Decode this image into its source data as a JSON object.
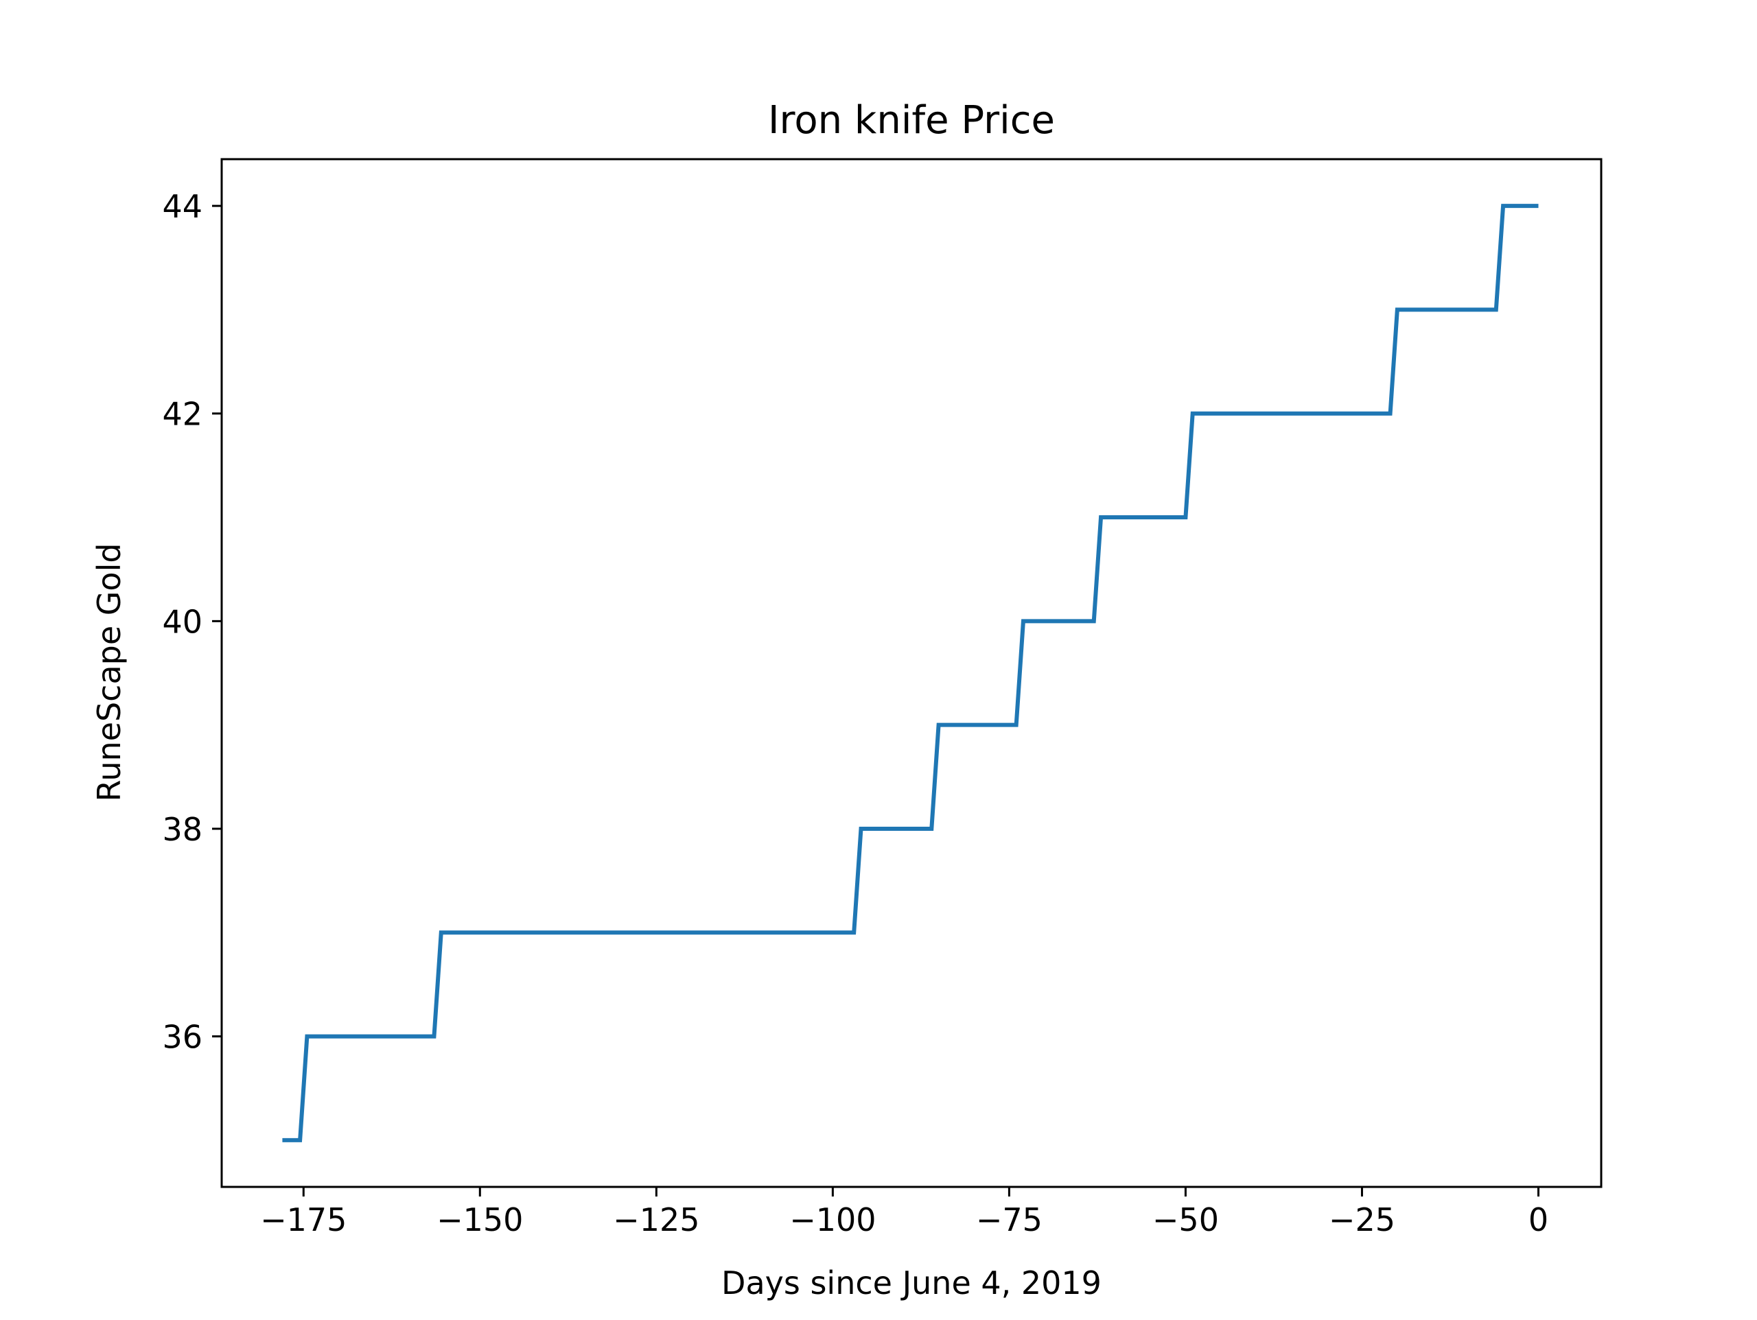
{
  "chart_data": {
    "type": "line",
    "title": "Iron knife Price",
    "xlabel": "Days since June 4, 2019",
    "ylabel": "RuneScape Gold",
    "xlim": [
      -186.6,
      8.9
    ],
    "ylim": [
      34.55,
      44.45
    ],
    "xticks": [
      -175,
      -150,
      -125,
      -100,
      -75,
      -50,
      -25,
      0
    ],
    "xtick_labels": [
      "−175",
      "−150",
      "−125",
      "−100",
      "−75",
      "−50",
      "−25",
      "0"
    ],
    "yticks": [
      36,
      38,
      40,
      42,
      44
    ],
    "ytick_labels": [
      "36",
      "38",
      "40",
      "42",
      "44"
    ],
    "grid": false,
    "line_color": "#1f77b4",
    "series": [
      {
        "x": [
          -178,
          -175.5,
          -174.5,
          -156.5,
          -155.5,
          -97,
          -96,
          -86,
          -85,
          -74,
          -73,
          -63,
          -62,
          -50,
          -49,
          -21,
          -20,
          -6,
          -5,
          0
        ],
        "y": [
          35,
          35,
          36,
          36,
          37,
          37,
          38,
          38,
          39,
          39,
          40,
          40,
          41,
          41,
          42,
          42,
          43,
          43,
          44,
          44
        ]
      }
    ]
  }
}
